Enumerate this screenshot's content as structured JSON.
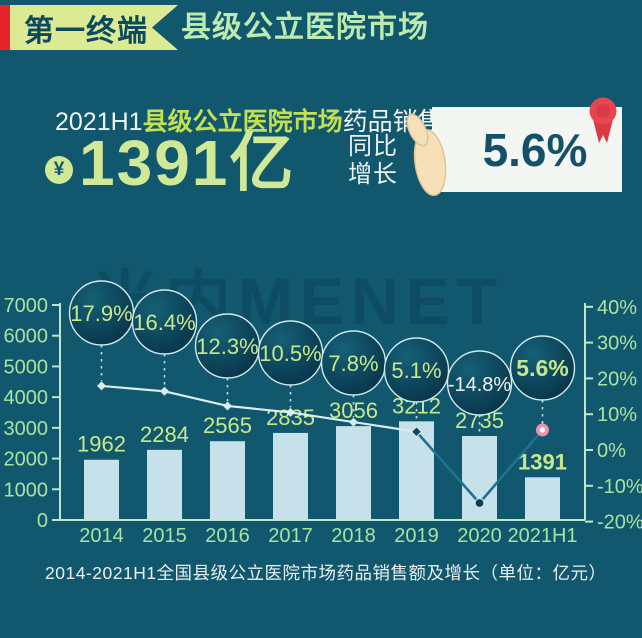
{
  "header": {
    "tag": "第一终端",
    "title": "县级公立医院市场"
  },
  "headline": {
    "prefix": "2021H1",
    "market": "县级公立医院市场",
    "suffix": "药品销售额达",
    "currency": "¥",
    "amount": "1391亿",
    "yoy_line1": "同比",
    "yoy_line2": "增长",
    "growth_value": "5.6%"
  },
  "watermark": {
    "text": "米内MENET"
  },
  "colors": {
    "background": "#11576E",
    "banner_green": "#DCEA94",
    "banner_red": "#E5252B",
    "title_green": "#BDEBAE",
    "highlight_yellow_green": "#C3E052",
    "amount_green": "#CFE996",
    "card_bg": "#F3F6F2",
    "card_text": "#15506B",
    "badge_red": "#E8464F",
    "hand_skin": "#F6E0B8",
    "bar_fill": "#C6E1E9",
    "axis": "#BFE7C9",
    "axis_text": "#A8E3A0",
    "value_text": "#C8E88E",
    "line_light": "#D9EEF3",
    "line_dark": "#1F7291",
    "marker_pink": "#EF8FB0",
    "bubble_fill_dark": "#083449",
    "bubble_fill_light": "#156077",
    "bubble_stroke": "#CDE9EF",
    "bubble_text": "#C8E88E",
    "bubble_text_neg": "#EEF4F3",
    "connector": "#B9DDE6"
  },
  "chart_data": {
    "type": "bar",
    "categories": [
      "2014",
      "2015",
      "2016",
      "2017",
      "2018",
      "2019",
      "2020",
      "2021H1"
    ],
    "series": [
      {
        "name": "药品销售额（亿元）",
        "type": "bar",
        "values": [
          1962,
          2284,
          2565,
          2835,
          3056,
          3212,
          2735,
          1391
        ]
      },
      {
        "name": "同比增长（%）",
        "type": "line",
        "values": [
          17.9,
          16.4,
          12.3,
          10.5,
          7.8,
          5.1,
          -14.8,
          5.6
        ]
      }
    ],
    "growth_labels": [
      "17.9%",
      "16.4%",
      "12.3%",
      "10.5%",
      "7.8%",
      "5.1%",
      "-14.8%",
      "5.6%"
    ],
    "left_axis": {
      "min": 0,
      "max": 7000,
      "ticks": [
        7000,
        6000,
        5000,
        4000,
        3000,
        2000,
        1000,
        0
      ]
    },
    "right_axis": {
      "min": -20,
      "max": 40,
      "ticks": [
        "40%",
        "30%",
        "20%",
        "10%",
        "0%",
        "-10%",
        "-20%"
      ],
      "tick_values": [
        40,
        30,
        20,
        10,
        0,
        -10,
        -20
      ]
    },
    "grid": false,
    "legend": "none",
    "caption": "2014-2021H1全国县级公立医院市场药品销售额及增长（单位：亿元）"
  }
}
